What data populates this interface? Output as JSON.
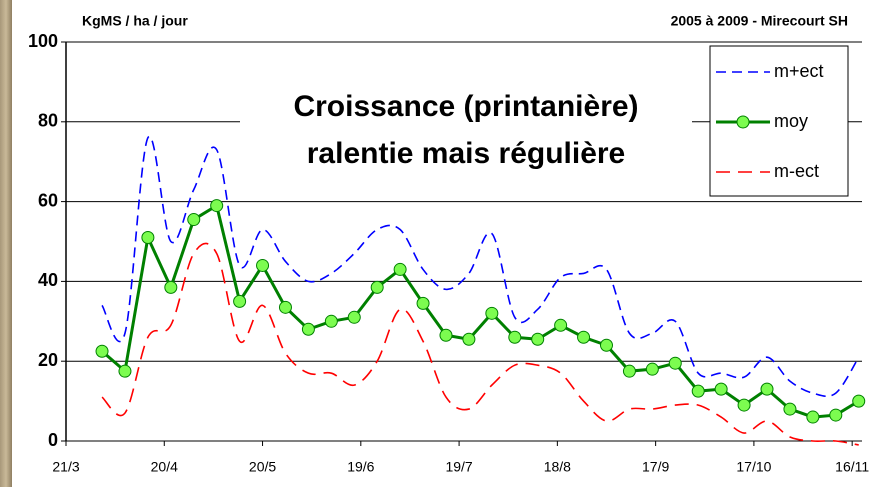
{
  "chart_data": {
    "type": "line",
    "ylabel": "KgMS / ha / jour",
    "subtitle": "2005 à 2009 - Mirecourt SH",
    "annotations": [
      "Croissance (printanière)",
      "ralentie mais régulière"
    ],
    "x": [
      11,
      18,
      25,
      32,
      39,
      46,
      53,
      60,
      67,
      74,
      81,
      88,
      95,
      102,
      109,
      116,
      123,
      130,
      137,
      144,
      151,
      158,
      165,
      172,
      179,
      186,
      193,
      200,
      207,
      214,
      221,
      228,
      235,
      242
    ],
    "xlim": [
      0,
      243
    ],
    "xticks": [
      {
        "value": 0,
        "label": "21/3"
      },
      {
        "value": 30,
        "label": "20/4"
      },
      {
        "value": 60,
        "label": "20/5"
      },
      {
        "value": 90,
        "label": "19/6"
      },
      {
        "value": 120,
        "label": "19/7"
      },
      {
        "value": 150,
        "label": "18/8"
      },
      {
        "value": 180,
        "label": "17/9"
      },
      {
        "value": 210,
        "label": "17/10"
      },
      {
        "value": 240,
        "label": "16/11"
      }
    ],
    "ylim": [
      0,
      100
    ],
    "yticks": [
      0,
      20,
      40,
      60,
      80,
      100
    ],
    "grid": true,
    "legend": "top-right",
    "series": [
      {
        "name": "m+ect",
        "color": "#0000ff",
        "dash": true,
        "markers": false,
        "values": [
          34,
          27,
          76,
          50,
          63,
          73,
          44,
          53,
          45,
          40,
          42,
          47,
          53,
          53,
          43,
          38,
          42,
          52,
          31,
          33,
          41,
          42,
          43,
          27,
          27,
          30,
          17,
          17,
          16,
          21,
          15,
          12,
          12,
          21
        ]
      },
      {
        "name": "moy",
        "color": "#008000",
        "dash": false,
        "markers": true,
        "values": [
          22.5,
          17.5,
          51,
          38.5,
          55.5,
          59,
          35,
          44,
          33.5,
          28,
          30,
          31,
          38.5,
          43,
          34.5,
          26.5,
          25.5,
          32,
          26,
          25.5,
          29,
          26,
          24,
          17.5,
          18,
          19.5,
          12.5,
          13,
          9,
          13,
          8,
          6,
          6.5,
          10
        ]
      },
      {
        "name": "m-ect",
        "color": "#ff0000",
        "dash": true,
        "markers": false,
        "values": [
          11,
          7,
          26,
          29,
          47,
          47,
          25,
          34,
          22,
          17,
          17,
          14,
          20,
          33,
          25,
          11,
          8,
          14,
          19,
          19,
          17,
          10,
          5,
          8,
          8,
          9,
          9,
          6,
          2,
          5,
          1,
          0,
          0,
          -1
        ]
      }
    ]
  }
}
